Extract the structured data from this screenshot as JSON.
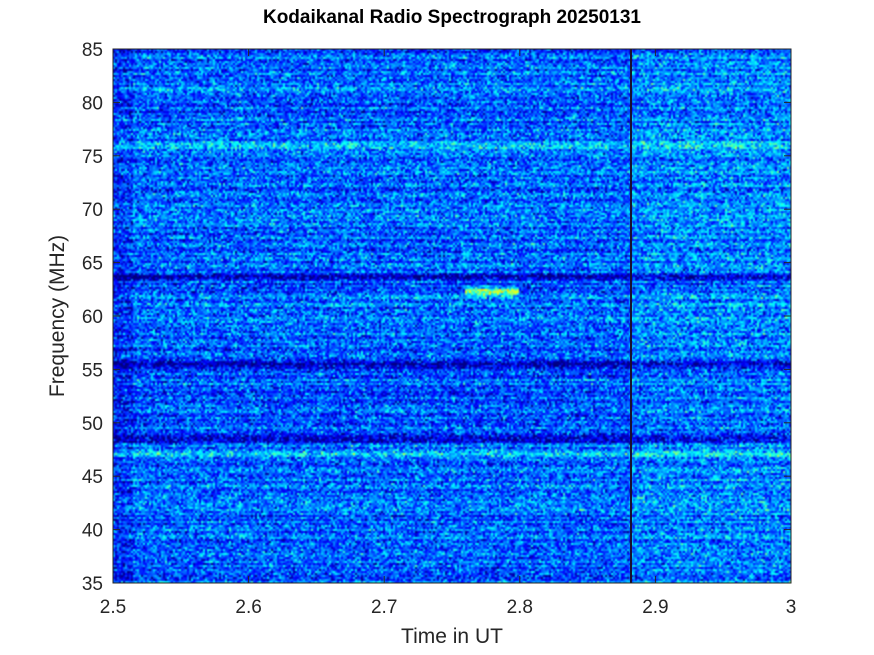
{
  "chart_data": {
    "type": "heatmap",
    "title": "Kodaikanal Radio Spectrograph  20250131",
    "xlabel": "Time in UT",
    "ylabel": "Frequency (MHz)",
    "xlim": [
      2.5,
      3.0
    ],
    "ylim": [
      35,
      85
    ],
    "xticks": [
      2.5,
      2.6,
      2.7,
      2.8,
      2.9,
      3.0
    ],
    "xtick_labels": [
      "2.5",
      "2.6",
      "2.7",
      "2.8",
      "2.9",
      "3"
    ],
    "yticks": [
      35,
      40,
      45,
      50,
      55,
      60,
      65,
      70,
      75,
      80,
      85
    ],
    "ytick_labels": [
      "35",
      "40",
      "45",
      "50",
      "55",
      "60",
      "65",
      "70",
      "75",
      "80",
      "85"
    ],
    "colormap": "jet",
    "grid": false,
    "features": {
      "vertical_gap_time": 2.882,
      "dark_band_freqs_mhz": [
        63.6,
        55.5,
        48.5
      ],
      "bright_band_freqs_mhz": [
        75.9,
        47.2
      ],
      "bright_patch": {
        "time_range": [
          2.76,
          2.8
        ],
        "freq_mhz": 62.3
      }
    },
    "colors": {
      "background": "#0a3cd8",
      "gap_line": "#1a1030"
    }
  }
}
